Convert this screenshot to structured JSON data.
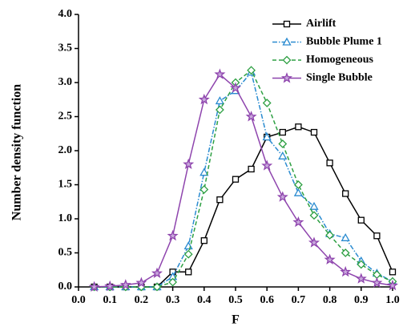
{
  "chart_data": {
    "type": "line",
    "x_label": "F",
    "y_label": "Number density function",
    "x": [
      0.05,
      0.1,
      0.15,
      0.2,
      0.25,
      0.3,
      0.35,
      0.4,
      0.45,
      0.5,
      0.55,
      0.6,
      0.65,
      0.7,
      0.75,
      0.8,
      0.85,
      0.9,
      0.95,
      1.0
    ],
    "series": [
      {
        "name": "Airlift",
        "color": "#000000",
        "marker": "square",
        "dash": "solid",
        "values": [
          0,
          0,
          0,
          0,
          0,
          0.22,
          0.22,
          0.68,
          1.28,
          1.58,
          1.73,
          2.2,
          2.27,
          2.35,
          2.27,
          1.82,
          1.37,
          0.98,
          0.75,
          0.22
        ]
      },
      {
        "name": "Bubble Plume 1",
        "color": "#2a8bd0",
        "marker": "triangle",
        "dash": "dashdot",
        "values": [
          0,
          0,
          0,
          0,
          0,
          0.15,
          0.6,
          1.68,
          2.73,
          2.88,
          3.15,
          2.2,
          1.92,
          1.38,
          1.18,
          0.78,
          0.72,
          0.38,
          0.2,
          0.08
        ]
      },
      {
        "name": "Homogeneous",
        "color": "#2ea043",
        "marker": "diamond",
        "dash": "dashed",
        "values": [
          0,
          0,
          0,
          0,
          0,
          0.07,
          0.48,
          1.43,
          2.6,
          3.0,
          3.18,
          2.7,
          2.1,
          1.5,
          1.05,
          0.76,
          0.5,
          0.33,
          0.18,
          0.08
        ]
      },
      {
        "name": "Single Bubble",
        "color": "#8e44ad",
        "marker": "star",
        "dash": "solid",
        "values": [
          0,
          0.01,
          0.03,
          0.06,
          0.2,
          0.75,
          1.8,
          2.75,
          3.12,
          2.92,
          2.5,
          1.78,
          1.32,
          0.95,
          0.65,
          0.4,
          0.22,
          0.12,
          0.06,
          0.02
        ]
      }
    ],
    "xlim": [
      0,
      1.0
    ],
    "ylim": [
      0,
      4.0
    ],
    "xticks": [
      {
        "value": 0,
        "label": "0.0"
      },
      0.1,
      0.2,
      0.3,
      0.4,
      0.5,
      0.6,
      0.7,
      0.8,
      0.9,
      {
        "value": 1.0,
        "label": "1.0"
      }
    ],
    "yticks": [
      {
        "value": 0,
        "label": "0.0"
      },
      0.5,
      {
        "value": 1.0,
        "label": "1.0"
      },
      1.5,
      {
        "value": 2.0,
        "label": "2.0"
      },
      2.5,
      {
        "value": 3.0,
        "label": "3.0"
      },
      3.5,
      {
        "value": 4.0,
        "label": "4.0"
      }
    ],
    "legend": "top-right"
  }
}
